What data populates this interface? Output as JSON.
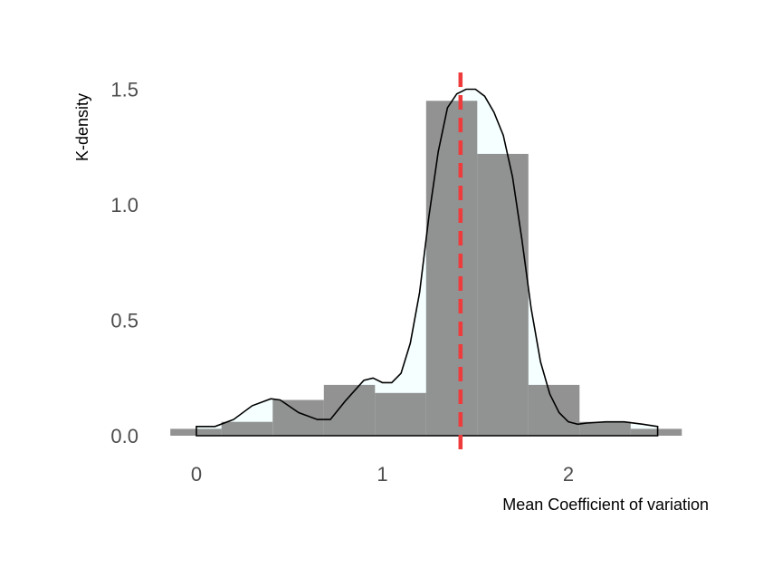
{
  "chart_data": {
    "type": "histogram",
    "xlabel": "Mean Coefficient of variation",
    "ylabel": "K-density",
    "xlim": [
      -0.15,
      2.6
    ],
    "ylim": [
      -0.05,
      1.62
    ],
    "x_ticks": [
      0,
      1,
      2
    ],
    "x_tick_labels": [
      "0",
      "1",
      "2"
    ],
    "y_ticks": [
      0.0,
      0.5,
      1.0,
      1.5
    ],
    "y_tick_labels": [
      "0.0",
      "0.5",
      "1.0",
      "1.5"
    ],
    "grid": false,
    "histogram": {
      "bin_width": 0.275,
      "bins": [
        {
          "x0": -0.14,
          "x1": 0.135,
          "density": 0.03
        },
        {
          "x0": 0.135,
          "x1": 0.41,
          "density": 0.06
        },
        {
          "x0": 0.41,
          "x1": 0.685,
          "density": 0.155
        },
        {
          "x0": 0.685,
          "x1": 0.96,
          "density": 0.22
        },
        {
          "x0": 0.96,
          "x1": 1.235,
          "density": 0.185
        },
        {
          "x0": 1.235,
          "x1": 1.51,
          "density": 1.45
        },
        {
          "x0": 1.51,
          "x1": 1.785,
          "density": 1.22
        },
        {
          "x0": 1.785,
          "x1": 2.06,
          "density": 0.22
        },
        {
          "x0": 2.06,
          "x1": 2.335,
          "density": 0.06
        },
        {
          "x0": 2.335,
          "x1": 2.61,
          "density": 0.03
        }
      ],
      "color": "#7f7f7f"
    },
    "density_curve": {
      "x": [
        0.0,
        0.1,
        0.2,
        0.3,
        0.4,
        0.45,
        0.55,
        0.65,
        0.72,
        0.8,
        0.9,
        0.95,
        1.0,
        1.05,
        1.1,
        1.15,
        1.2,
        1.25,
        1.3,
        1.35,
        1.4,
        1.45,
        1.5,
        1.55,
        1.6,
        1.65,
        1.7,
        1.75,
        1.8,
        1.85,
        1.9,
        1.95,
        2.0,
        2.05,
        2.1,
        2.2,
        2.3,
        2.4,
        2.48
      ],
      "y": [
        0.04,
        0.04,
        0.07,
        0.13,
        0.16,
        0.155,
        0.1,
        0.07,
        0.07,
        0.15,
        0.24,
        0.25,
        0.23,
        0.23,
        0.27,
        0.4,
        0.62,
        0.95,
        1.23,
        1.42,
        1.48,
        1.5,
        1.5,
        1.47,
        1.4,
        1.3,
        1.12,
        0.85,
        0.55,
        0.32,
        0.18,
        0.1,
        0.06,
        0.05,
        0.055,
        0.06,
        0.06,
        0.05,
        0.04
      ],
      "fill": "#f5ffff",
      "stroke": "#000000"
    },
    "mean_line": {
      "x": 1.42,
      "color": "#ef3b3b",
      "style": "dashed"
    }
  }
}
